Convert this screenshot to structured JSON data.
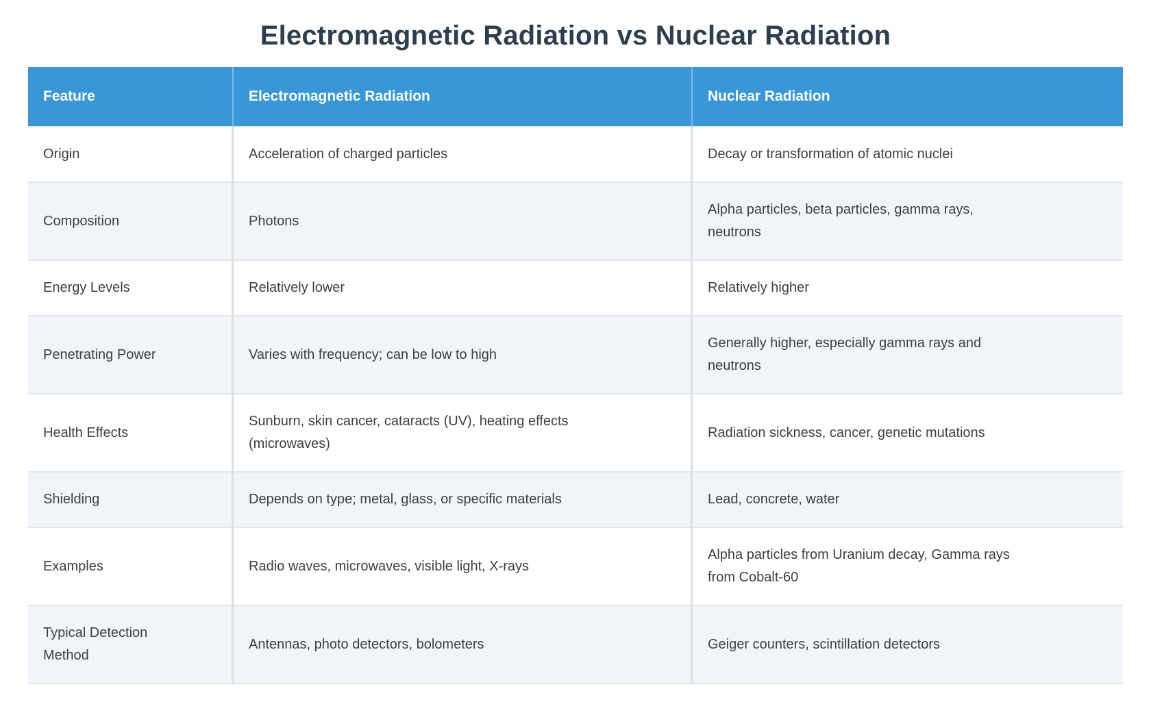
{
  "title": "Electromagnetic Radiation vs Nuclear Radiation",
  "colors": {
    "header_bg": "#3997d8",
    "header_text": "#ffffff",
    "title_text": "#2d3e50",
    "body_text": "#3c4045",
    "row_alt_bg": "#f1f4f8",
    "row_bg": "#ffffff",
    "border": "#dcdee1"
  },
  "table": {
    "columns": [
      "Feature",
      "Electromagnetic Radiation",
      "Nuclear Radiation"
    ],
    "rows": [
      {
        "feature": "Origin",
        "em": "Acceleration of charged particles",
        "nuclear": "Decay or transformation of atomic nuclei"
      },
      {
        "feature": "Composition",
        "em": "Photons",
        "nuclear": "Alpha particles, beta particles, gamma rays,\nneutrons"
      },
      {
        "feature": "Energy Levels",
        "em": "Relatively lower",
        "nuclear": "Relatively higher"
      },
      {
        "feature": "Penetrating Power",
        "em": "Varies with frequency; can be low to high",
        "nuclear": "Generally higher, especially gamma rays and\nneutrons"
      },
      {
        "feature": "Health Effects",
        "em": "Sunburn, skin cancer, cataracts (UV), heating effects\n(microwaves)",
        "nuclear": "Radiation sickness, cancer, genetic mutations"
      },
      {
        "feature": "Shielding",
        "em": "Depends on type; metal, glass, or specific materials",
        "nuclear": "Lead, concrete, water"
      },
      {
        "feature": "Examples",
        "em": "Radio waves, microwaves, visible light, X-rays",
        "nuclear": "Alpha particles from Uranium decay, Gamma rays\nfrom Cobalt-60"
      },
      {
        "feature": "Typical Detection\nMethod",
        "em": "Antennas, photo detectors, bolometers",
        "nuclear": "Geiger counters, scintillation detectors"
      }
    ]
  },
  "chart_data": {
    "type": "table",
    "title": "Electromagnetic Radiation vs Nuclear Radiation",
    "columns": [
      "Feature",
      "Electromagnetic Radiation",
      "Nuclear Radiation"
    ],
    "rows": [
      [
        "Origin",
        "Acceleration of charged particles",
        "Decay or transformation of atomic nuclei"
      ],
      [
        "Composition",
        "Photons",
        "Alpha particles, beta particles, gamma rays, neutrons"
      ],
      [
        "Energy Levels",
        "Relatively lower",
        "Relatively higher"
      ],
      [
        "Penetrating Power",
        "Varies with frequency; can be low to high",
        "Generally higher, especially gamma rays and neutrons"
      ],
      [
        "Health Effects",
        "Sunburn, skin cancer, cataracts (UV), heating effects (microwaves)",
        "Radiation sickness, cancer, genetic mutations"
      ],
      [
        "Shielding",
        "Depends on type; metal, glass, or specific materials",
        "Lead, concrete, water"
      ],
      [
        "Examples",
        "Radio waves, microwaves, visible light, X-rays",
        "Alpha particles from Uranium decay, Gamma rays from Cobalt-60"
      ],
      [
        "Typical Detection Method",
        "Antennas, photo detectors, bolometers",
        "Geiger counters, scintillation detectors"
      ]
    ]
  }
}
